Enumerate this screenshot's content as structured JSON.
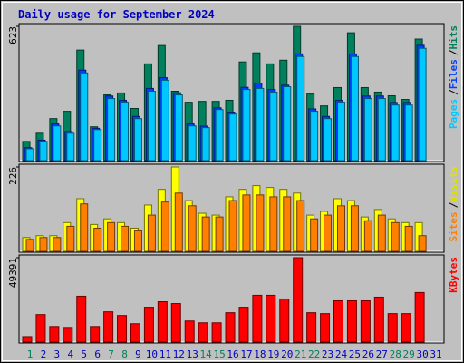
{
  "chart_data": {
    "type": "bar",
    "title": "Daily usage for September 2024",
    "categories": [
      "1",
      "2",
      "3",
      "4",
      "5",
      "6",
      "7",
      "8",
      "9",
      "10",
      "11",
      "12",
      "13",
      "14",
      "15",
      "16",
      "17",
      "18",
      "19",
      "20",
      "21",
      "22",
      "23",
      "24",
      "25",
      "26",
      "27",
      "28",
      "29",
      "30",
      "31"
    ],
    "category_colors": [
      "#00805c",
      "#0000c0",
      "#0000c0",
      "#0000c0",
      "#0000c0",
      "#0000c0",
      "#00805c",
      "#00805c",
      "#0000c0",
      "#0000c0",
      "#0000c0",
      "#0000c0",
      "#0000c0",
      "#00805c",
      "#00805c",
      "#0000c0",
      "#0000c0",
      "#0000c0",
      "#0000c0",
      "#0000c0",
      "#00805c",
      "#00805c",
      "#0000c0",
      "#0000c0",
      "#0000c0",
      "#0000c0",
      "#0000c0",
      "#00805c",
      "#00805c",
      "#0000c0",
      "#0000c0"
    ],
    "legend_separator": "/",
    "panels": [
      {
        "ylim": [
          0,
          623
        ],
        "yticks": [
          623
        ],
        "series": [
          {
            "name": "Hits",
            "color": "#00805c",
            "values": [
              89,
              127,
              195,
              229,
              513,
              157,
              305,
              314,
              242,
              449,
              534,
              322,
              271,
              275,
              275,
              280,
              458,
              500,
              449,
              466,
              623,
              309,
              254,
              339,
              593,
              339,
              318,
              301,
              284,
              564,
              0
            ]
          },
          {
            "name": "Files",
            "color": "#0040ff",
            "values": [
              60,
              95,
              170,
              135,
              420,
              150,
              300,
              280,
              205,
              335,
              385,
              315,
              170,
              160,
              245,
              225,
              340,
              360,
              330,
              350,
              495,
              240,
              205,
              280,
              495,
              300,
              300,
              270,
              270,
              535,
              0
            ]
          },
          {
            "name": "Pages",
            "color": "#00c8ff",
            "values": [
              55,
              89,
              161,
              127,
              407,
              144,
              288,
              271,
              195,
              322,
              373,
              305,
              161,
              153,
              237,
              216,
              330,
              335,
              318,
              343,
              483,
              229,
              195,
              271,
              483,
              288,
              288,
              258,
              258,
              521,
              0
            ]
          }
        ]
      },
      {
        "ylim": [
          0,
          226
        ],
        "yticks": [
          226
        ],
        "series": [
          {
            "name": "Visits",
            "color": "#ffff00",
            "values": [
              37,
              42,
              42,
              77,
              141,
              72,
              87,
              77,
              62,
              124,
              166,
              226,
              136,
              102,
              97,
              146,
              166,
              176,
              171,
              166,
              156,
              97,
              107,
              141,
              136,
              92,
              112,
              87,
              77,
              77,
              0
            ]
          },
          {
            "name": "Sites",
            "color": "#ff8000",
            "values": [
              32,
              37,
              37,
              67,
              127,
              62,
              77,
              67,
              57,
              97,
              132,
              156,
              122,
              92,
              92,
              136,
              151,
              151,
              146,
              146,
              136,
              87,
              97,
              122,
              122,
              82,
              97,
              77,
              67,
              42,
              0
            ]
          }
        ]
      },
      {
        "ylim": [
          0,
          49391
        ],
        "yticks": [
          49391
        ],
        "series": [
          {
            "name": "KBytes",
            "color": "#ff0000",
            "values": [
              3222,
              16100,
              9130,
              8590,
              26850,
              9130,
              17720,
              15570,
              10740,
              20400,
              23630,
              22550,
              12350,
              11280,
              11280,
              17180,
              20400,
              27390,
              27390,
              25240,
              49391,
              17180,
              16650,
              24170,
              24170,
              24170,
              26310,
              16650,
              16650,
              29000,
              0
            ]
          }
        ]
      }
    ]
  }
}
